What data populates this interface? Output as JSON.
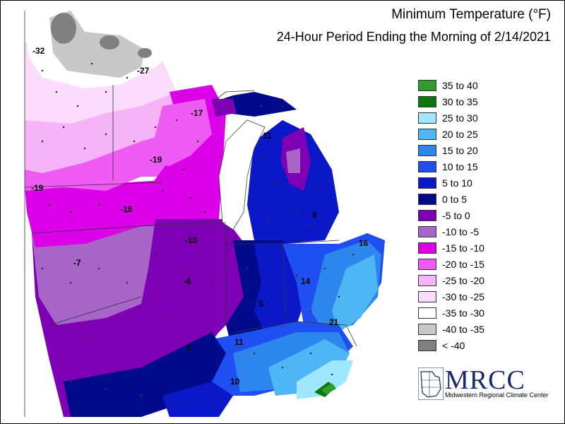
{
  "title": "Minimum Temperature (°F)",
  "subtitle": "24-Hour Period Ending the Morning of 2/14/2021",
  "legend": [
    {
      "label": "35 to 40",
      "color": "#2e9e2e"
    },
    {
      "label": "30 to 35",
      "color": "#0b7a0b"
    },
    {
      "label": "25 to 30",
      "color": "#9fe7ff"
    },
    {
      "label": "20 to 25",
      "color": "#4fb6f5"
    },
    {
      "label": "15 to 20",
      "color": "#2d86ee"
    },
    {
      "label": "10 to 15",
      "color": "#1f4ff0"
    },
    {
      "label": "5 to 10",
      "color": "#0a18c8"
    },
    {
      "label": "0 to 5",
      "color": "#020a8c"
    },
    {
      "label": "-5 to 0",
      "color": "#7e00b4"
    },
    {
      "label": "-10 to -5",
      "color": "#a865c8"
    },
    {
      "label": "-15 to -10",
      "color": "#dc00e8"
    },
    {
      "label": "-20 to -15",
      "color": "#ee5cf4"
    },
    {
      "label": "-25 to -20",
      "color": "#f6b4f8"
    },
    {
      "label": "-30 to -25",
      "color": "#fbdcfd"
    },
    {
      "label": "-35 to -30",
      "color": "#ffffff"
    },
    {
      "label": "-40 to -35",
      "color": "#c8c8c8"
    },
    {
      "label": "< -40",
      "color": "#808080"
    }
  ],
  "map_values": [
    {
      "text": "-32"
    },
    {
      "text": "-27"
    },
    {
      "text": "-17"
    },
    {
      "text": "-19"
    },
    {
      "text": "-19"
    },
    {
      "text": "-16"
    },
    {
      "text": "-10"
    },
    {
      "text": "-7"
    },
    {
      "text": "-6"
    },
    {
      "text": "11"
    },
    {
      "text": "9"
    },
    {
      "text": "16"
    },
    {
      "text": "14"
    },
    {
      "text": "5"
    },
    {
      "text": "21"
    },
    {
      "text": "0"
    },
    {
      "text": "11"
    },
    {
      "text": "10"
    }
  ],
  "logo": {
    "name": "MRCC",
    "subtitle": "Midwestern Regional Climate Center"
  }
}
